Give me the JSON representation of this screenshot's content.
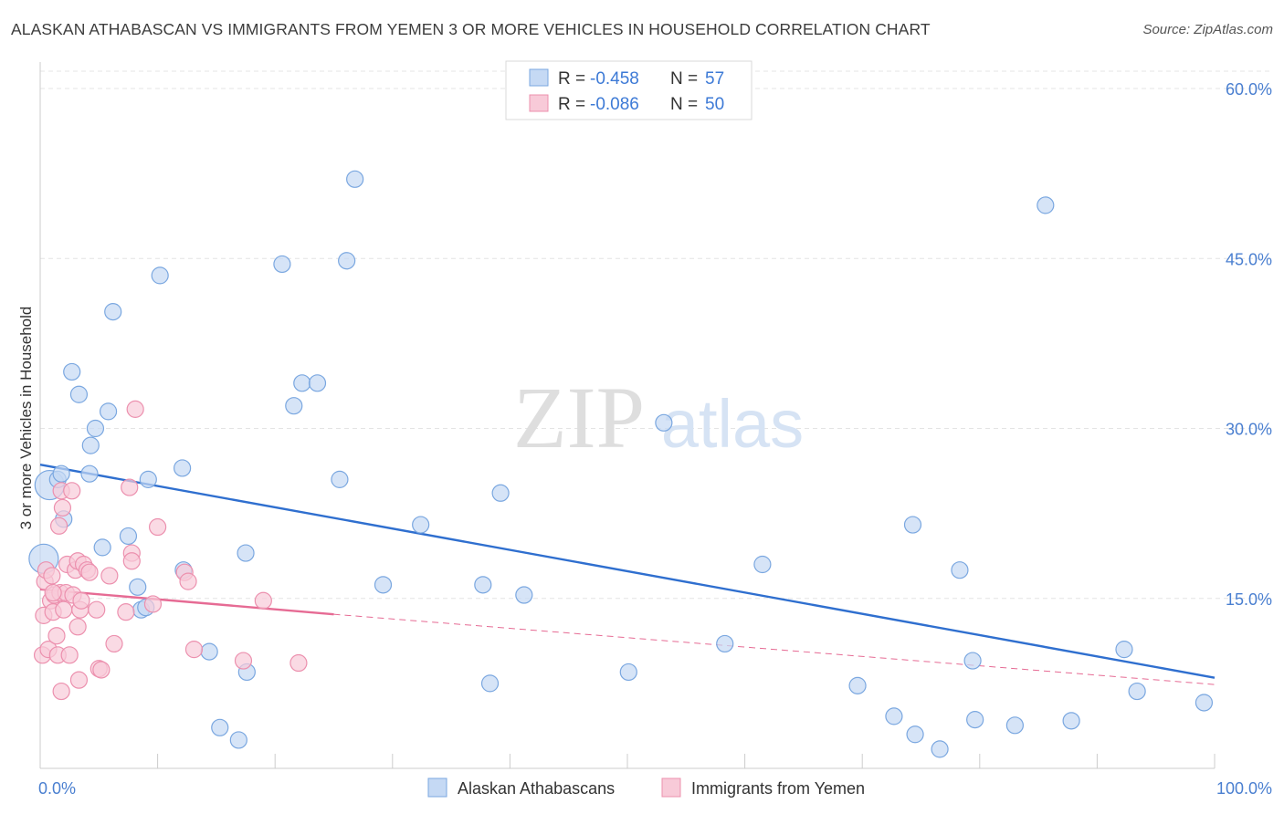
{
  "title": "ALASKAN ATHABASCAN VS IMMIGRANTS FROM YEMEN 3 OR MORE VEHICLES IN HOUSEHOLD CORRELATION CHART",
  "source": "Source: ZipAtlas.com",
  "watermark": {
    "zip": "ZIP",
    "atlas": "atlas"
  },
  "legend_top": [
    {
      "r_label": "R = ",
      "r_value": "-0.458",
      "n_label": "N = ",
      "n_value": "57"
    },
    {
      "r_label": "R = ",
      "r_value": "-0.086",
      "n_label": "N = ",
      "n_value": "50"
    }
  ],
  "colors": {
    "blue_fill": "#c5d9f4",
    "blue_stroke": "#7aa7e0",
    "blue_line": "#2f6fcf",
    "pink_fill": "#f8cad8",
    "pink_stroke": "#ec90ae",
    "pink_line": "#e66b94",
    "tick_text": "#4a7fd0",
    "grid": "#e4e4e4"
  },
  "chart_data": {
    "type": "scatter",
    "title": "ALASKAN ATHABASCAN VS IMMIGRANTS FROM YEMEN 3 OR MORE VEHICLES IN HOUSEHOLD CORRELATION CHART",
    "xlabel": "",
    "ylabel": "3 or more Vehicles in Household",
    "xlim": [
      0,
      100
    ],
    "ylim": [
      0,
      60
    ],
    "x_tick_labels": [
      "0.0%",
      "100.0%"
    ],
    "y_ticks": [
      15,
      30,
      45,
      60
    ],
    "y_tick_labels": [
      "15.0%",
      "30.0%",
      "45.0%",
      "60.0%"
    ],
    "grid": true,
    "legend_position": "bottom-center",
    "series": [
      {
        "name": "Alaskan Athabascans",
        "color": "#7aa7e0",
        "points": [
          [
            0.3,
            18.5
          ],
          [
            0.8,
            25
          ],
          [
            1.5,
            25.5
          ],
          [
            1.8,
            26
          ],
          [
            2,
            22
          ],
          [
            2.7,
            35
          ],
          [
            3.3,
            33
          ],
          [
            4.2,
            26
          ],
          [
            4.3,
            28.5
          ],
          [
            4.7,
            30
          ],
          [
            5.3,
            19.5
          ],
          [
            5.8,
            31.5
          ],
          [
            6.2,
            40.3
          ],
          [
            7.5,
            20.5
          ],
          [
            8.3,
            16
          ],
          [
            8.6,
            14
          ],
          [
            9,
            14.2
          ],
          [
            9.2,
            25.5
          ],
          [
            10.2,
            43.5
          ],
          [
            12.1,
            26.5
          ],
          [
            12.2,
            17.5
          ],
          [
            14.4,
            10.3
          ],
          [
            15.3,
            3.6
          ],
          [
            16.9,
            2.5
          ],
          [
            17.5,
            19
          ],
          [
            17.6,
            8.5
          ],
          [
            20.6,
            44.5
          ],
          [
            21.6,
            32
          ],
          [
            22.3,
            34
          ],
          [
            23.6,
            34
          ],
          [
            25.5,
            25.5
          ],
          [
            26.1,
            44.8
          ],
          [
            26.8,
            52
          ],
          [
            29.2,
            16.2
          ],
          [
            32.4,
            21.5
          ],
          [
            37.7,
            16.2
          ],
          [
            38.3,
            7.5
          ],
          [
            39.2,
            24.3
          ],
          [
            41.2,
            15.3
          ],
          [
            50.1,
            8.5
          ],
          [
            53.1,
            30.5
          ],
          [
            58.3,
            11
          ],
          [
            61.5,
            18
          ],
          [
            69.6,
            7.3
          ],
          [
            72.7,
            4.6
          ],
          [
            74.3,
            21.5
          ],
          [
            74.5,
            3
          ],
          [
            76.6,
            1.7
          ],
          [
            78.3,
            17.5
          ],
          [
            79.4,
            9.5
          ],
          [
            79.6,
            4.3
          ],
          [
            83,
            3.8
          ],
          [
            85.6,
            49.7
          ],
          [
            87.8,
            4.2
          ],
          [
            92.3,
            10.5
          ],
          [
            93.4,
            6.8
          ],
          [
            99.1,
            5.8
          ]
        ]
      },
      {
        "name": "Immigrants from Yemen",
        "color": "#ec90ae",
        "points": [
          [
            0.2,
            10
          ],
          [
            0.3,
            13.5
          ],
          [
            0.4,
            16.5
          ],
          [
            0.5,
            17.5
          ],
          [
            0.7,
            10.5
          ],
          [
            0.9,
            14.8
          ],
          [
            1,
            17
          ],
          [
            1.1,
            13.8
          ],
          [
            1.2,
            15.3
          ],
          [
            1.4,
            11.7
          ],
          [
            1.5,
            10
          ],
          [
            1.6,
            21.4
          ],
          [
            1.7,
            15.5
          ],
          [
            1.8,
            24.5
          ],
          [
            1.8,
            6.8
          ],
          [
            1.9,
            23
          ],
          [
            2,
            14
          ],
          [
            2.2,
            15.5
          ],
          [
            2.3,
            18
          ],
          [
            2.5,
            10
          ],
          [
            2.7,
            24.5
          ],
          [
            2.8,
            15.3
          ],
          [
            3,
            17.5
          ],
          [
            3.2,
            18.3
          ],
          [
            3.2,
            12.5
          ],
          [
            3.3,
            7.8
          ],
          [
            3.4,
            14
          ],
          [
            3.5,
            14.8
          ],
          [
            3.7,
            18
          ],
          [
            4,
            17.5
          ],
          [
            4.2,
            17.3
          ],
          [
            4.8,
            14
          ],
          [
            5,
            8.8
          ],
          [
            5.2,
            8.7
          ],
          [
            5.9,
            17
          ],
          [
            6.3,
            11
          ],
          [
            7.3,
            13.8
          ],
          [
            7.6,
            24.8
          ],
          [
            7.8,
            19
          ],
          [
            7.8,
            18.3
          ],
          [
            8.1,
            31.7
          ],
          [
            9.6,
            14.5
          ],
          [
            10,
            21.3
          ],
          [
            12.3,
            17.3
          ],
          [
            12.6,
            16.5
          ],
          [
            13.1,
            10.5
          ],
          [
            17.3,
            9.5
          ],
          [
            19,
            14.8
          ],
          [
            22,
            9.3
          ],
          [
            1.1,
            15.5
          ]
        ]
      }
    ],
    "trendlines": [
      {
        "series": "Alaskan Athabascans",
        "x": [
          0,
          100
        ],
        "y": [
          26.8,
          8.0
        ],
        "style": "solid"
      },
      {
        "series": "Immigrants from Yemen",
        "x": [
          0,
          25
        ],
        "y": [
          15.8,
          13.6
        ],
        "style": "solid"
      },
      {
        "series": "Immigrants from Yemen",
        "x": [
          25,
          100
        ],
        "y": [
          13.6,
          7.4
        ],
        "style": "dashed"
      }
    ]
  }
}
